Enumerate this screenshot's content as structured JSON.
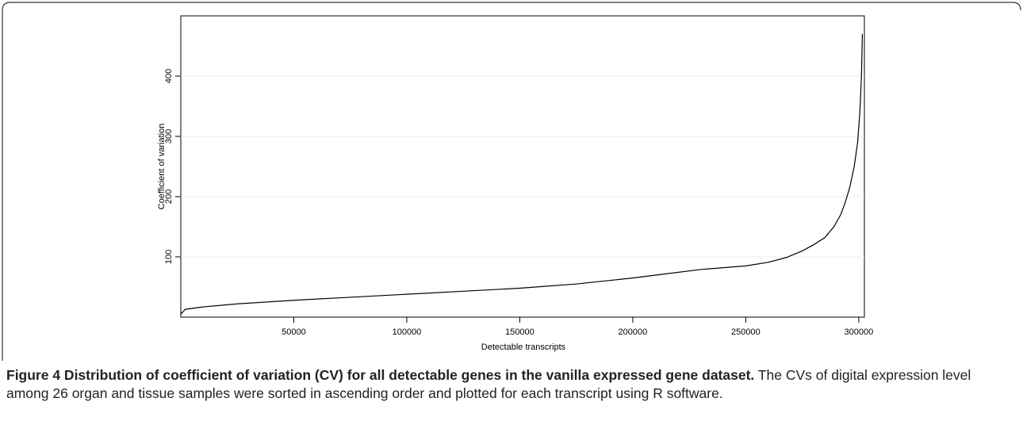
{
  "chart_data": {
    "type": "line",
    "xlabel": "Detectable transcripts",
    "ylabel": "Coefficient of variation",
    "x": [
      1,
      2000,
      10000,
      25000,
      50000,
      75000,
      100000,
      125000,
      150000,
      175000,
      200000,
      215000,
      230000,
      250000,
      260000,
      268000,
      275000,
      280000,
      285000,
      289000,
      292000,
      294000,
      296000,
      298000,
      299500,
      300500,
      301200,
      301600
    ],
    "series": [
      {
        "name": "CV",
        "color": "#000000",
        "values": [
          5,
          13,
          17,
          22,
          28,
          33,
          38,
          43,
          48,
          55,
          65,
          72,
          79,
          85,
          91,
          99,
          110,
          120,
          132,
          150,
          170,
          190,
          215,
          250,
          290,
          340,
          400,
          470
        ]
      }
    ],
    "xlim": [
      0,
      302500
    ],
    "ylim": [
      0,
      500
    ],
    "xticks": [
      50000,
      100000,
      150000,
      200000,
      250000,
      300000
    ],
    "yticks": [
      100,
      200,
      300,
      400
    ],
    "grid": true
  },
  "caption": {
    "label": "Figure 4 Distribution of coefficient of variation (CV) for all detectable genes in the vanilla expressed gene dataset.",
    "text": "The CVs of digital expression level among 26 organ and tissue samples were sorted in ascending order and plotted for each transcript using R software."
  }
}
